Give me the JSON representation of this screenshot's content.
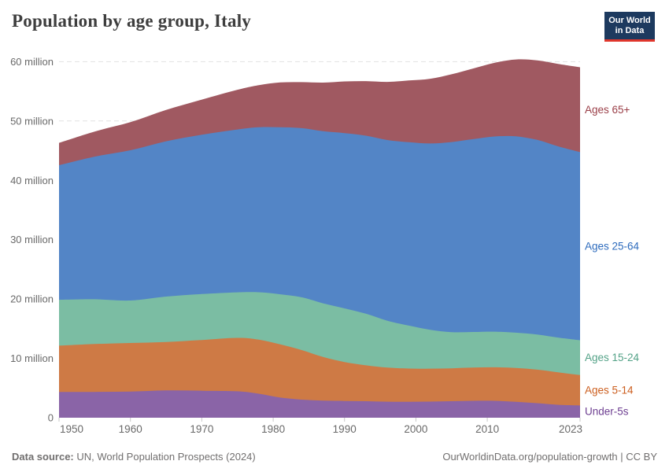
{
  "header": {
    "title": "Population by age group, Italy"
  },
  "logo": {
    "line1": "Our World",
    "line2": "in Data",
    "bg_color": "#1d3a5f",
    "accent_color": "#e0362c"
  },
  "footer": {
    "source_label": "Data source:",
    "source_text": " UN, World Population Prospects (2024)",
    "right_text": "OurWorldinData.org/population-growth | CC BY"
  },
  "chart_data": {
    "type": "area",
    "stacked": true,
    "title": "Population by age group, Italy",
    "xlabel": "",
    "ylabel": "",
    "ylim": [
      0,
      62
    ],
    "xlim": [
      1950,
      2023
    ],
    "grid": "horizontal-dashed",
    "legend_position": "right",
    "x": [
      1950,
      1955,
      1960,
      1965,
      1970,
      1975,
      1978,
      1981,
      1984,
      1987,
      1990,
      1993,
      1996,
      1999,
      2002,
      2005,
      2008,
      2011,
      2014,
      2017,
      2020,
      2023
    ],
    "unit": "million",
    "series": [
      {
        "name": "Under-5s",
        "fill": "#8a64a7",
        "label_color": "#6d3e91",
        "values": [
          4.33,
          4.35,
          4.4,
          4.6,
          4.55,
          4.45,
          4.05,
          3.4,
          3.05,
          2.88,
          2.83,
          2.78,
          2.7,
          2.68,
          2.72,
          2.79,
          2.85,
          2.85,
          2.68,
          2.45,
          2.18,
          2.07
        ]
      },
      {
        "name": "Ages 5-14",
        "fill": "#ce7a45",
        "label_color": "#cc5e1e",
        "values": [
          7.81,
          8.07,
          8.19,
          8.15,
          8.55,
          9.01,
          9.1,
          8.95,
          8.35,
          7.35,
          6.56,
          6.05,
          5.75,
          5.6,
          5.55,
          5.54,
          5.6,
          5.65,
          5.7,
          5.65,
          5.45,
          5.11
        ]
      },
      {
        "name": "Ages 15-24",
        "fill": "#7bbda3",
        "label_color": "#53a287",
        "values": [
          7.73,
          7.54,
          7.17,
          7.66,
          7.74,
          7.67,
          8.0,
          8.45,
          8.9,
          9.05,
          9.04,
          8.7,
          7.9,
          7.25,
          6.55,
          6.09,
          6.0,
          6.0,
          5.95,
          5.92,
          5.87,
          5.88
        ]
      },
      {
        "name": "Ages 25-64",
        "fill": "#5385c6",
        "label_color": "#2d6bbd",
        "values": [
          22.68,
          24.04,
          25.31,
          26.17,
          26.85,
          27.45,
          27.8,
          28.15,
          28.5,
          29.0,
          29.54,
          30.0,
          30.45,
          30.9,
          31.4,
          32.04,
          32.5,
          32.9,
          33.1,
          32.8,
          32.2,
          31.7
        ]
      },
      {
        "name": "Ages 65+",
        "fill": "#a05961",
        "label_color": "#9a3e47",
        "values": [
          3.77,
          4.23,
          4.74,
          5.28,
          5.92,
          6.69,
          7.1,
          7.55,
          7.75,
          8.2,
          8.7,
          9.2,
          9.8,
          10.4,
          10.9,
          11.42,
          11.9,
          12.4,
          12.95,
          13.4,
          13.9,
          14.3
        ]
      }
    ],
    "yticks": [
      {
        "v": 0,
        "label": "0"
      },
      {
        "v": 10,
        "label": "10 million"
      },
      {
        "v": 20,
        "label": "20 million"
      },
      {
        "v": 30,
        "label": "30 million"
      },
      {
        "v": 40,
        "label": "40 million"
      },
      {
        "v": 50,
        "label": "50 million"
      },
      {
        "v": 60,
        "label": "60 million"
      }
    ],
    "xticks": [
      1950,
      1960,
      1970,
      1980,
      1990,
      2000,
      2010,
      2023
    ],
    "colors": {
      "grid": "#e2e2e2",
      "tick": "#c9c9c9",
      "axis_text": "#696969"
    }
  }
}
